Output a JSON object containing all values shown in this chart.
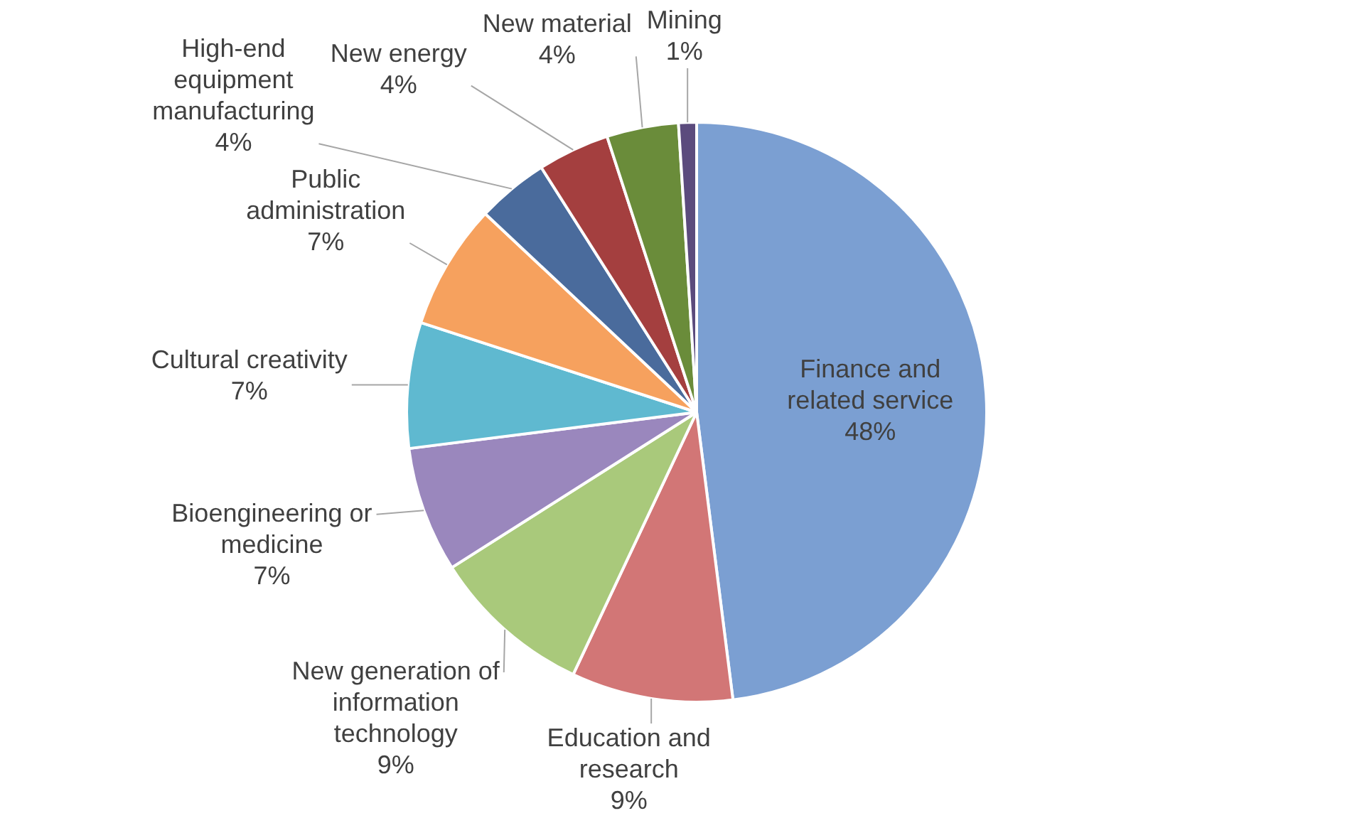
{
  "chart_data": {
    "type": "pie",
    "categories": [
      "Finance and related service",
      "Education and research",
      "New generation of information technology",
      "Bioengineering or medicine",
      "Cultural creativity",
      "Public administration",
      "High-end equipment manufacturing",
      "New energy",
      "New material",
      "Mining"
    ],
    "values": [
      48,
      9,
      9,
      7,
      7,
      7,
      4,
      4,
      4,
      1
    ],
    "value_labels": [
      "48%",
      "9%",
      "9%",
      "7%",
      "7%",
      "7%",
      "4%",
      "4%",
      "4%",
      "1%"
    ],
    "colors": [
      "#7b9fd2",
      "#d27676",
      "#a9c97b",
      "#9a87bd",
      "#5fb9d0",
      "#f6a15e",
      "#4a6b9c",
      "#a43f3f",
      "#6a8c3a",
      "#5b4b7d"
    ],
    "legend": false
  }
}
